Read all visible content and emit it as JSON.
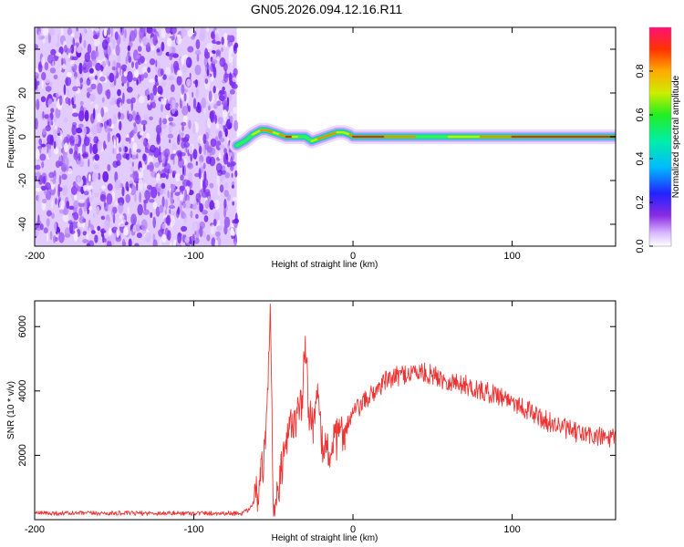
{
  "title": "GN05.2026.094.12.16.R11",
  "colors": {
    "noise": "#7a2cf0",
    "signal_line": "#ee3333",
    "background": "#ffffff"
  },
  "chart_data": [
    {
      "type": "heatmap",
      "title": "GN05.2026.094.12.16.R11",
      "xlabel": "Height of straight line (km)",
      "ylabel": "Frequency (Hz)",
      "xlim": [
        -200,
        165
      ],
      "ylim": [
        -50,
        50
      ],
      "xticks": [
        -200,
        -100,
        0,
        100
      ],
      "yticks": [
        -40,
        -20,
        0,
        20,
        40
      ],
      "noise_region": {
        "x_start": -200,
        "x_end": -73
      },
      "ridge": {
        "x": [
          -73,
          -68,
          -63,
          -58,
          -54,
          -50,
          -46,
          -42,
          -38,
          -34,
          -30,
          -26,
          -22,
          -18,
          -14,
          -10,
          -6,
          -2,
          0,
          20,
          40,
          60,
          80,
          100,
          130,
          165
        ],
        "frequency": [
          -4,
          -2,
          1,
          3,
          3,
          2,
          1,
          0,
          0,
          0,
          0,
          -2,
          -1,
          0,
          1,
          2,
          2,
          1,
          0,
          0,
          0,
          0,
          0,
          0,
          0,
          0
        ],
        "amplitude": [
          0.4,
          0.6,
          0.7,
          0.8,
          0.85,
          0.8,
          0.75,
          0.9,
          0.9,
          0.6,
          0.5,
          0.7,
          0.8,
          0.85,
          0.9,
          0.8,
          0.6,
          0.8,
          0.95,
          0.9,
          0.7,
          0.6,
          0.85,
          0.95,
          0.95,
          0.9
        ]
      },
      "colorbar": {
        "label": "Normalized spectral amplitude",
        "range": [
          0,
          1
        ],
        "ticks": [
          "0.0",
          "0.2",
          "0.4",
          "0.6",
          "0.8"
        ]
      }
    },
    {
      "type": "line",
      "xlabel": "Height of straight line (km)",
      "ylabel": "SNR (10 * v/v)",
      "xlim": [
        -200,
        165
      ],
      "ylim": [
        0,
        6800
      ],
      "xticks": [
        -200,
        -100,
        0,
        100
      ],
      "yticks": [
        2000,
        4000,
        6000
      ],
      "series": [
        {
          "name": "SNR",
          "x": [
            -200,
            -150,
            -100,
            -70,
            -65,
            -60,
            -58,
            -55,
            -52,
            -50,
            -48,
            -45,
            -42,
            -40,
            -38,
            -35,
            -32,
            -30,
            -28,
            -25,
            -22,
            -20,
            -15,
            -10,
            -5,
            0,
            10,
            20,
            30,
            40,
            50,
            60,
            70,
            80,
            90,
            100,
            110,
            120,
            130,
            140,
            150,
            165
          ],
          "values": [
            200,
            200,
            200,
            200,
            300,
            800,
            1200,
            2200,
            6700,
            300,
            500,
            1500,
            2200,
            2800,
            3000,
            3300,
            3500,
            5700,
            3500,
            3000,
            3800,
            2400,
            2100,
            2500,
            2800,
            3300,
            3800,
            4300,
            4500,
            4600,
            4500,
            4300,
            4200,
            4000,
            3900,
            3700,
            3400,
            3100,
            2900,
            2700,
            2600,
            2500
          ]
        }
      ]
    }
  ]
}
